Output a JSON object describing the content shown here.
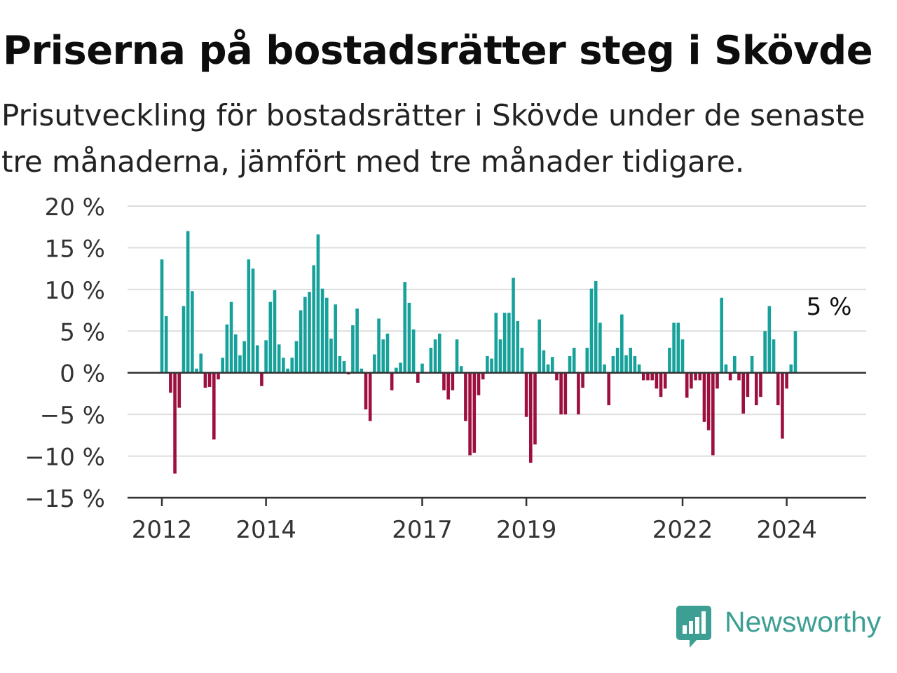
{
  "header": {
    "title": "Priserna på bostadsrätter steg i Skövde",
    "subtitle": "Prisutveckling för bostadsrätter i Skövde under de senaste tre månaderna, jämfört med tre månader tidigare."
  },
  "brand": {
    "name": "Newsworthy",
    "color": "#3d9f94",
    "icon": "newsworthy-logo-icon"
  },
  "colors": {
    "positive": "#16a19b",
    "negative": "#9c0f3e",
    "grid": "#dddddd",
    "zero_line": "#333333"
  },
  "chart_data": {
    "type": "bar",
    "title": "",
    "xlabel": "",
    "ylabel": "",
    "ylim": [
      -15,
      20
    ],
    "y_ticks": [
      20,
      15,
      10,
      5,
      0,
      -5,
      -10,
      -15
    ],
    "y_tick_labels": [
      "20 %",
      "15 %",
      "10 %",
      "5 %",
      "0 %",
      "−5 %",
      "−10 %",
      "−15 %"
    ],
    "x_ticks": [
      "2012",
      "2014",
      "2017",
      "2019",
      "2022",
      "2024"
    ],
    "x_start_year": 2012,
    "grid": true,
    "legend": "none",
    "last_value_label": "5 %",
    "values": [
      13.6,
      6.8,
      -2.4,
      -12.1,
      -4.2,
      8.0,
      17.0,
      9.8,
      0.5,
      2.3,
      -1.8,
      -1.7,
      -8.0,
      -0.8,
      1.8,
      5.8,
      8.5,
      4.6,
      2.1,
      3.8,
      13.6,
      12.5,
      3.3,
      -1.6,
      3.9,
      8.5,
      9.9,
      3.4,
      1.8,
      0.5,
      1.8,
      3.8,
      7.5,
      9.1,
      9.7,
      12.9,
      16.6,
      10.1,
      9.0,
      4.1,
      8.2,
      2.0,
      1.4,
      -0.2,
      5.7,
      7.7,
      0.5,
      -4.4,
      -5.8,
      2.2,
      6.5,
      4.0,
      4.7,
      -2.1,
      0.6,
      1.2,
      10.9,
      8.4,
      5.2,
      -1.2,
      1.1,
      0.1,
      3.0,
      4.0,
      4.7,
      -2.1,
      -3.2,
      -2.1,
      4.0,
      0.8,
      -5.8,
      -9.9,
      -9.6,
      -2.7,
      -0.8,
      2.0,
      1.7,
      7.2,
      4.0,
      7.2,
      7.2,
      11.4,
      6.2,
      3.0,
      -5.3,
      -10.8,
      -8.6,
      6.4,
      2.7,
      1.0,
      1.9,
      -0.9,
      -5.0,
      -5.0,
      2.0,
      3.0,
      -5.0,
      -1.8,
      3.0,
      10.1,
      11.0,
      6.0,
      1.0,
      -3.9,
      2.0,
      3.0,
      7.0,
      2.1,
      3.0,
      2.0,
      1.0,
      -0.9,
      -0.9,
      -0.9,
      -1.9,
      -2.9,
      -1.9,
      3.0,
      6.0,
      6.0,
      4.0,
      -3.0,
      -1.9,
      -0.9,
      -0.9,
      -5.9,
      -6.9,
      -9.9,
      -1.9,
      9.0,
      1.0,
      -0.9,
      2.0,
      -0.9,
      -4.9,
      -2.9,
      2.0,
      -3.9,
      -2.9,
      5.0,
      8.0,
      4.0,
      -3.9,
      -7.9,
      -1.9,
      1.0,
      5.0
    ]
  }
}
